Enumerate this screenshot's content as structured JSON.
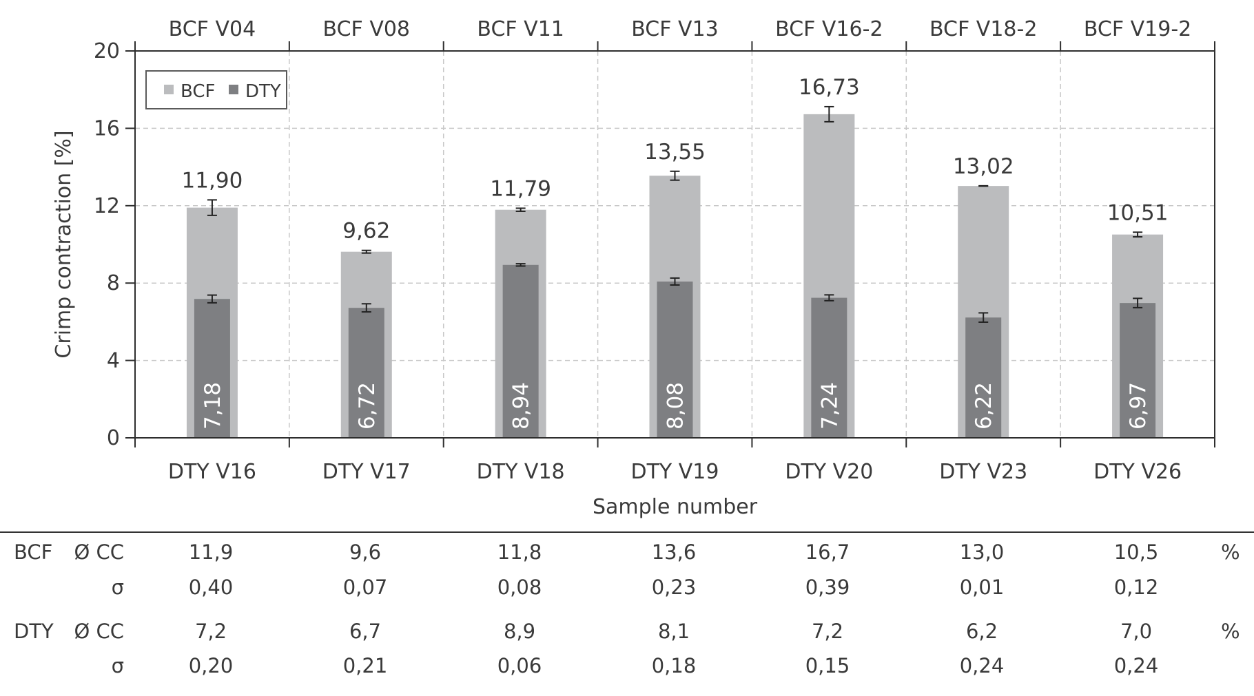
{
  "chart_data": {
    "type": "bar",
    "categories_top": [
      "BCF V04",
      "BCF V08",
      "BCF V11",
      "BCF V13",
      "BCF V16-2",
      "BCF V18-2",
      "BCF V19-2"
    ],
    "categories_bottom": [
      "DTY V16",
      "DTY V17",
      "DTY V18",
      "DTY V19",
      "DTY V20",
      "DTY V23",
      "DTY V26"
    ],
    "series": [
      {
        "name": "BCF",
        "color": "#bbbcbe",
        "values": [
          11.9,
          9.62,
          11.79,
          13.55,
          16.73,
          13.02,
          10.51
        ],
        "errors": [
          0.4,
          0.07,
          0.08,
          0.23,
          0.39,
          0.01,
          0.12
        ],
        "labels": [
          "11,90",
          "9,62",
          "11,79",
          "13,55",
          "16,73",
          "13,02",
          "10,51"
        ]
      },
      {
        "name": "DTY",
        "color": "#7e7f82",
        "values": [
          7.18,
          6.72,
          8.94,
          8.08,
          7.24,
          6.22,
          6.97
        ],
        "errors": [
          0.2,
          0.21,
          0.06,
          0.18,
          0.15,
          0.24,
          0.24
        ],
        "labels": [
          "7,18",
          "6,72",
          "8,94",
          "8,08",
          "7,24",
          "6,22",
          "6,97"
        ]
      }
    ],
    "ylabel": "Crimp contraction [%]",
    "xlabel": "Sample number",
    "ylim": [
      0,
      20
    ],
    "yticks": [
      "0",
      "4",
      "8",
      "12",
      "16",
      "20"
    ],
    "legend_position": "top-left",
    "grid": true
  },
  "table": {
    "rows": [
      {
        "group": "BCF",
        "stat": "Ø CC",
        "values": [
          "11,9",
          "9,6",
          "11,8",
          "13,6",
          "16,7",
          "13,0",
          "10,5"
        ],
        "unit": "%"
      },
      {
        "group": "",
        "stat": "σ",
        "values": [
          "0,40",
          "0,07",
          "0,08",
          "0,23",
          "0,39",
          "0,01",
          "0,12"
        ],
        "unit": ""
      },
      {
        "group": "DTY",
        "stat": "Ø CC",
        "values": [
          "7,2",
          "6,7",
          "8,9",
          "8,1",
          "7,2",
          "6,2",
          "7,0"
        ],
        "unit": "%"
      },
      {
        "group": "",
        "stat": "σ",
        "values": [
          "0,20",
          "0,21",
          "0,06",
          "0,18",
          "0,15",
          "0,24",
          "0,24"
        ],
        "unit": ""
      }
    ]
  }
}
